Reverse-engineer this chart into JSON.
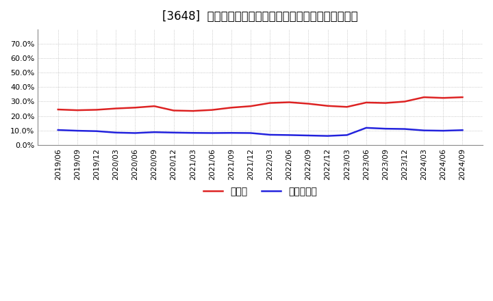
{
  "title": "[3648]  現預金、有利子負債の総資産に対する比率の推移",
  "x_labels": [
    "2019/06",
    "2019/09",
    "2019/12",
    "2020/03",
    "2020/06",
    "2020/09",
    "2020/12",
    "2021/03",
    "2021/06",
    "2021/09",
    "2021/12",
    "2022/03",
    "2022/06",
    "2022/09",
    "2022/12",
    "2023/03",
    "2023/06",
    "2023/09",
    "2023/12",
    "2024/03",
    "2024/06",
    "2024/09"
  ],
  "cash_values": [
    0.245,
    0.24,
    0.243,
    0.252,
    0.258,
    0.268,
    0.238,
    0.235,
    0.242,
    0.258,
    0.268,
    0.29,
    0.295,
    0.285,
    0.27,
    0.263,
    0.293,
    0.29,
    0.3,
    0.33,
    0.325,
    0.33
  ],
  "debt_values": [
    0.103,
    0.098,
    0.095,
    0.085,
    0.082,
    0.088,
    0.085,
    0.083,
    0.082,
    0.083,
    0.082,
    0.07,
    0.068,
    0.065,
    0.062,
    0.068,
    0.118,
    0.112,
    0.11,
    0.1,
    0.098,
    0.102
  ],
  "cash_color": "#dd2222",
  "debt_color": "#2222dd",
  "cash_label": "現預金",
  "debt_label": "有利子負債",
  "ylim_min": 0.0,
  "ylim_max": 0.8,
  "ytick_values": [
    0.0,
    0.1,
    0.2,
    0.3,
    0.4,
    0.5,
    0.6,
    0.7
  ],
  "background_color": "#ffffff",
  "plot_bg_color": "#ffffff",
  "grid_color": "#999999",
  "title_fontsize": 12,
  "legend_fontsize": 10,
  "tick_fontsize": 8
}
